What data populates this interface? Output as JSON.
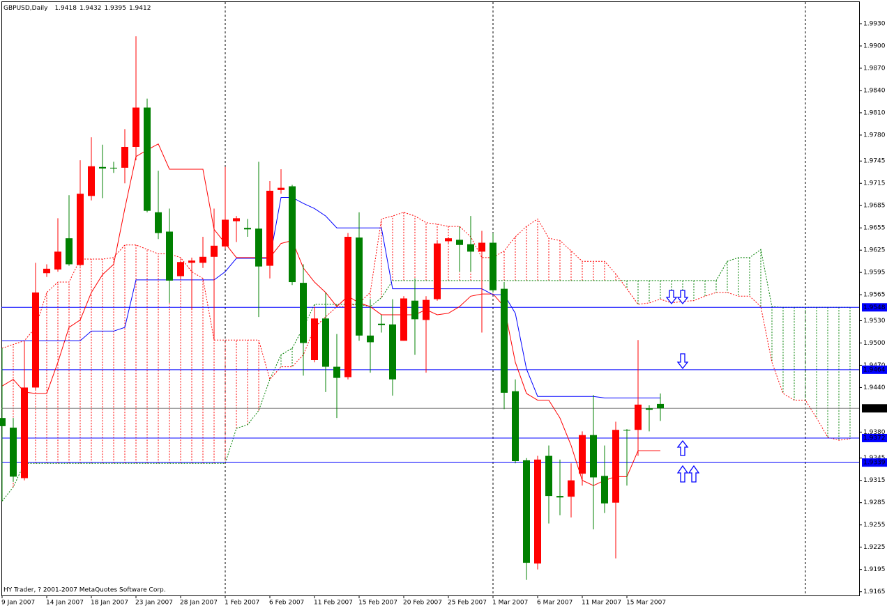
{
  "chart_data": {
    "type": "candlestick",
    "title": "GBPUSD,Daily",
    "footer": "HY Trader, ? 2001-2007 MetaQuotes Software Corp.",
    "categories": [
      "9 Jan 2007",
      null,
      null,
      null,
      "14 Jan 2007",
      null,
      null,
      null,
      "18 Jan 2007",
      null,
      null,
      null,
      "23 Jan 2007",
      null,
      null,
      null,
      "28 Jan 2007",
      null,
      null,
      null,
      "1 Feb 2007",
      null,
      null,
      null,
      "6 Feb 2007",
      null,
      null,
      null,
      "11 Feb 2007",
      null,
      null,
      null,
      "15 Feb 2007",
      null,
      null,
      null,
      "20 Feb 2007",
      null,
      null,
      null,
      "25 Feb 2007",
      null,
      null,
      null,
      "1 Mar 2007",
      null,
      null,
      null,
      "6 Mar 2007",
      null,
      null,
      null,
      "11 Mar 2007",
      null,
      null,
      null,
      "15 Mar 2007",
      null,
      null,
      null
    ],
    "open": [
      1.9399,
      1.9386,
      1.9318,
      1.944,
      1.9594,
      1.9599,
      1.9641,
      1.9605,
      1.9698,
      1.9737,
      1.9736,
      1.9736,
      1.9764,
      1.9817,
      1.9676,
      1.965,
      1.959,
      1.9608,
      1.9608,
      1.9616,
      1.963,
      1.9664,
      1.9655,
      1.9654,
      1.9604,
      1.9706,
      1.9711,
      1.9581,
      1.9477,
      1.9533,
      1.9468,
      1.9454,
      1.9642,
      1.951,
      1.9526,
      1.9525,
      1.9503,
      1.9557,
      1.9531,
      1.9559,
      1.9637,
      1.9639,
      1.9633,
      1.9623,
      1.9635,
      1.9573,
      1.9435,
      1.9342,
      1.9203,
      1.9348,
      1.9294,
      1.9293,
      1.9324,
      1.9376,
      1.9321,
      1.9285,
      1.9383,
      1.9383,
      1.9412,
      1.9418
    ],
    "high": [
      1.9493,
      1.9399,
      1.9503,
      1.9608,
      1.9606,
      1.9668,
      1.9699,
      1.9746,
      1.9777,
      1.9767,
      1.9744,
      1.9788,
      1.9913,
      1.9829,
      1.9732,
      1.9681,
      1.9611,
      1.9615,
      1.9643,
      1.9681,
      1.9737,
      1.9671,
      1.9667,
      1.9744,
      1.9718,
      1.9734,
      1.9713,
      1.9606,
      1.9549,
      1.9568,
      1.9512,
      1.9648,
      1.9676,
      1.9559,
      1.9538,
      1.9559,
      1.9563,
      1.9587,
      1.9563,
      1.9638,
      1.9643,
      1.9657,
      1.9671,
      1.9651,
      1.9648,
      1.9582,
      1.9451,
      1.9345,
      1.9348,
      1.9362,
      1.9343,
      1.9338,
      1.9381,
      1.943,
      1.9362,
      1.9394,
      1.9384,
      1.9504,
      1.9416,
      1.9432
    ],
    "low": [
      1.9287,
      1.9313,
      1.9315,
      1.9437,
      1.9589,
      1.9596,
      1.9604,
      1.9603,
      1.9692,
      1.9695,
      1.9729,
      1.9715,
      1.9746,
      1.9676,
      1.964,
      1.9554,
      1.9587,
      1.9545,
      1.9601,
      1.9504,
      1.9627,
      1.9636,
      1.9643,
      1.9535,
      1.9587,
      1.9701,
      1.9578,
      1.9456,
      1.9474,
      1.9434,
      1.9399,
      1.9451,
      1.9503,
      1.946,
      1.9514,
      1.9429,
      1.9503,
      1.9484,
      1.946,
      1.9557,
      1.9634,
      1.9596,
      1.9596,
      1.9514,
      1.9568,
      1.9411,
      1.9338,
      1.9181,
      1.9195,
      1.9257,
      1.9268,
      1.9265,
      1.9308,
      1.9249,
      1.9271,
      1.921,
      1.9308,
      1.9348,
      1.9381,
      1.9395
    ],
    "close": [
      1.9388,
      1.932,
      1.944,
      1.9568,
      1.96,
      1.9623,
      1.9606,
      1.9701,
      1.9738,
      1.9735,
      1.9735,
      1.9764,
      1.9817,
      1.9678,
      1.9648,
      1.9584,
      1.9609,
      1.9611,
      1.9616,
      1.9631,
      1.9666,
      1.9668,
      1.9653,
      1.9603,
      1.9705,
      1.9709,
      1.9582,
      1.95,
      1.9533,
      1.9468,
      1.9453,
      1.9643,
      1.951,
      1.9501,
      1.9524,
      1.9451,
      1.956,
      1.9532,
      1.9558,
      1.9634,
      1.9641,
      1.9632,
      1.9623,
      1.9635,
      1.9571,
      1.9433,
      1.9341,
      1.9204,
      1.9343,
      1.9294,
      1.9292,
      1.9315,
      1.9376,
      1.9319,
      1.9284,
      1.9383,
      1.9382,
      1.9417,
      1.941,
      1.9412
    ],
    "up_color": "#ff0000",
    "down_color": "#008000",
    "indicators": [
      {
        "color": "#ff0000",
        "values": [
          1.9442,
          1.9451,
          1.9434,
          1.9432,
          1.9432,
          1.9474,
          1.9521,
          1.9531,
          1.9568,
          1.9592,
          1.9606,
          1.9681,
          1.9751,
          1.976,
          1.9768,
          1.9734,
          1.9734,
          1.9734,
          1.9734,
          1.9653,
          1.9634,
          1.9615,
          1.9615,
          1.9615,
          1.9615,
          1.9634,
          1.9638,
          1.9601,
          1.9582,
          1.9568,
          1.9549,
          1.9563,
          1.9554,
          1.9549,
          1.9538,
          1.9538,
          1.9538,
          1.9538,
          1.9545,
          1.9538,
          1.954,
          1.9549,
          1.9563,
          1.9566,
          1.9566,
          1.9549,
          1.9474,
          1.9432,
          1.9423,
          1.9423,
          1.9399,
          1.9362,
          1.9315,
          1.9308,
          1.9315,
          1.932,
          1.932,
          1.9355,
          1.9355,
          1.9355
        ]
      },
      {
        "color": "#0000ff",
        "values": [
          1.9503,
          1.9503,
          1.9503,
          1.9503,
          1.9503,
          1.9503,
          1.9503,
          1.9503,
          1.9516,
          1.9516,
          1.9516,
          1.9521,
          1.9585,
          1.9585,
          1.9585,
          1.9585,
          1.9585,
          1.9585,
          1.9585,
          1.9585,
          1.9596,
          1.9614,
          1.9614,
          1.9614,
          1.9614,
          1.9696,
          1.9696,
          1.9688,
          1.9681,
          1.9671,
          1.9655,
          1.9655,
          1.9655,
          1.9655,
          1.9655,
          1.9573,
          1.9573,
          1.9573,
          1.9573,
          1.9573,
          1.9573,
          1.9573,
          1.9573,
          1.9573,
          1.9565,
          1.9565,
          1.954,
          1.9465,
          1.9428,
          1.9428,
          1.9428,
          1.9428,
          1.9428,
          1.9428,
          1.9426,
          1.9426,
          1.9426,
          1.9426,
          1.9426,
          1.9426
        ]
      }
    ],
    "cloud": {
      "span_a": [
        1.9287,
        1.9306,
        1.9338,
        1.9338,
        1.9338,
        1.9338,
        1.9338,
        1.9338,
        1.9338,
        1.9338,
        1.9338,
        1.9338,
        1.9338,
        1.9338,
        1.9338,
        1.9338,
        1.9338,
        1.9338,
        1.9338,
        1.9338,
        1.9338,
        1.9385,
        1.939,
        1.9409,
        1.9451,
        1.9484,
        1.9493,
        1.9521,
        1.9552,
        1.9552,
        1.9552,
        1.9552,
        1.9552,
        1.9549,
        1.9561,
        1.9584,
        1.9584,
        1.9584,
        1.9584,
        1.9584,
        1.9584,
        1.9584,
        1.9584,
        1.9584,
        1.9584,
        1.9584,
        1.9584,
        1.9584,
        1.9584,
        1.9584,
        1.9584,
        1.9584,
        1.9584,
        1.9584,
        1.9584,
        1.9584,
        1.9584,
        1.9584,
        1.9584,
        1.9584,
        1.9584,
        1.9584,
        1.9584,
        1.9584,
        1.9584,
        1.961,
        1.9615,
        1.9615,
        1.9626,
        1.9549,
        1.9548,
        1.9548,
        1.9548,
        1.9548,
        1.9548,
        1.9548,
        1.9548
      ],
      "span_b": [
        1.9493,
        1.9498,
        1.9503,
        1.9521,
        1.9568,
        1.9582,
        1.9582,
        1.9613,
        1.9613,
        1.9613,
        1.9615,
        1.9632,
        1.9632,
        1.9626,
        1.962,
        1.962,
        1.9615,
        1.9596,
        1.9587,
        1.9504,
        1.9504,
        1.9504,
        1.9504,
        1.9504,
        1.9451,
        1.9468,
        1.9468,
        1.9484,
        1.9521,
        1.9535,
        1.9549,
        1.9549,
        1.9554,
        1.9568,
        1.9667,
        1.9671,
        1.9676,
        1.9671,
        1.9662,
        1.966,
        1.9657,
        1.9657,
        1.9643,
        1.9615,
        1.9615,
        1.9624,
        1.9643,
        1.9657,
        1.9667,
        1.9641,
        1.9638,
        1.9624,
        1.961,
        1.961,
        1.961,
        1.9593,
        1.9573,
        1.9552,
        1.9554,
        1.9559,
        1.9554,
        1.9556,
        1.9557,
        1.9563,
        1.9568,
        1.9568,
        1.9563,
        1.9563,
        1.9549,
        1.9474,
        1.9432,
        1.9423,
        1.9423,
        1.9399,
        1.9373,
        1.9369,
        1.9371
      ],
      "up_color": "#008000",
      "down_color": "#ff0000"
    },
    "levels": [
      1.9548,
      1.9464,
      1.9372,
      1.9339
    ],
    "level_color": "#0000ff",
    "bid_color": "#808080",
    "ylim": [
      1.916,
      1.996
    ],
    "yticks": [
      {
        "value": 1.993,
        "label": "1.9930"
      },
      {
        "value": 1.99,
        "label": "1.9900"
      },
      {
        "value": 1.987,
        "label": "1.9870"
      },
      {
        "value": 1.984,
        "label": "1.9840"
      },
      {
        "value": 1.981,
        "label": "1.9810"
      },
      {
        "value": 1.978,
        "label": "1.9780"
      },
      1.9745,
      1.9715,
      1.9685,
      1.9655,
      1.9625,
      1.9595,
      1.9565,
      {
        "value": 1.953,
        "label": "1.9530"
      },
      {
        "value": 1.95,
        "label": "1.9500"
      },
      {
        "value": 1.947,
        "label": "1.9470"
      },
      {
        "value": 1.944,
        "label": "1.9440"
      },
      {
        "value": 1.938,
        "label": "1.9380"
      },
      1.9345,
      1.9315,
      1.9285,
      1.9255,
      1.9225,
      1.9195,
      1.9165
    ]
  }
}
